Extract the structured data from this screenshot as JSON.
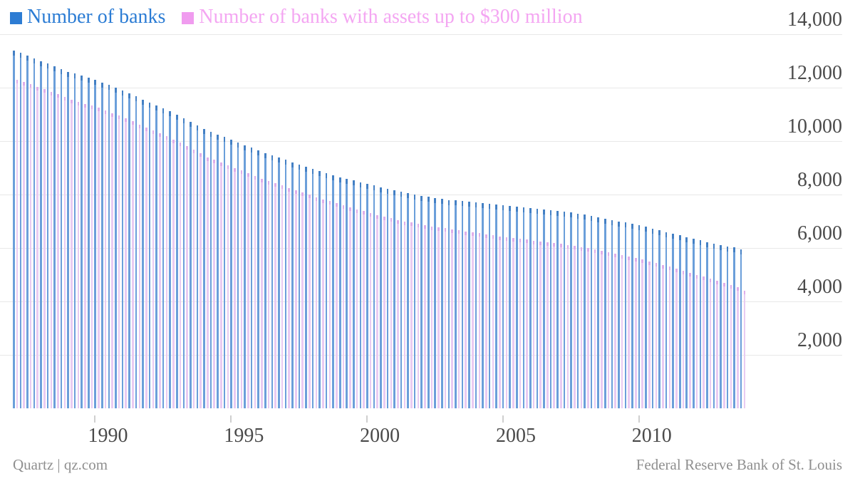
{
  "footer": {
    "left": "Quartz | qz.com",
    "right": "Federal Reserve Bank of St. Louis"
  },
  "colors": {
    "legend_blue_text": "#2b7cd4",
    "legend_pink_text": "#f4a6f2",
    "bar_blue": "#5e97d5",
    "bar_pink": "#e8c6f0",
    "gridline": "#e8e8e8",
    "axis_text": "#4a4a4a",
    "footer_text": "#8f8f8f"
  },
  "chart_data": {
    "type": "bar",
    "title": "",
    "xlabel": "",
    "ylabel": "",
    "grid": "horizontal",
    "legend_position": "top-left",
    "x_unit": "quarterly",
    "x_start_year": 1987,
    "x_end_year": 2013,
    "ylim": [
      0,
      14000
    ],
    "y_ticks": [
      {
        "label": "2,000",
        "value": 2000
      },
      {
        "label": "4,000",
        "value": 4000
      },
      {
        "label": "6,000",
        "value": 6000
      },
      {
        "label": "8,000",
        "value": 8000
      },
      {
        "label": "10,000",
        "value": 10000
      },
      {
        "label": "12,000",
        "value": 12000
      },
      {
        "label": "14,000",
        "value": 14000
      }
    ],
    "x_ticks": [
      {
        "label": "1990",
        "year": 1990
      },
      {
        "label": "1995",
        "year": 1995
      },
      {
        "label": "2000",
        "year": 2000
      },
      {
        "label": "2005",
        "year": 2005
      },
      {
        "label": "2010",
        "year": 2010
      }
    ],
    "series": [
      {
        "name": "Number of banks",
        "color": "#5e97d5",
        "values": [
          13400,
          13300,
          13200,
          13100,
          13000,
          12900,
          12800,
          12700,
          12600,
          12525,
          12450,
          12375,
          12300,
          12200,
          12100,
          12000,
          11900,
          11790,
          11680,
          11560,
          11450,
          11340,
          11230,
          11110,
          11000,
          10860,
          10725,
          10590,
          10450,
          10350,
          10250,
          10150,
          10050,
          9950,
          9850,
          9750,
          9650,
          9560,
          9475,
          9390,
          9300,
          9210,
          9125,
          9040,
          8950,
          8875,
          8800,
          8725,
          8650,
          8590,
          8525,
          8460,
          8400,
          8340,
          8275,
          8210,
          8150,
          8100,
          8050,
          8000,
          7950,
          7910,
          7875,
          7840,
          7800,
          7775,
          7750,
          7725,
          7700,
          7675,
          7650,
          7625,
          7600,
          7575,
          7550,
          7525,
          7500,
          7475,
          7450,
          7425,
          7400,
          7360,
          7325,
          7290,
          7250,
          7200,
          7150,
          7100,
          7050,
          7000,
          6950,
          6900,
          6850,
          6790,
          6725,
          6660,
          6600,
          6540,
          6475,
          6410,
          6350,
          6290,
          6225,
          6160,
          6100,
          6060,
          6025,
          5950
        ]
      },
      {
        "name": "Number of banks with assets up to $300 million",
        "color": "#e8c6f0",
        "values": [
          12300,
          12210,
          12125,
          12040,
          11950,
          11850,
          11750,
          11650,
          11550,
          11475,
          11400,
          11325,
          11250,
          11150,
          11050,
          10950,
          10850,
          10740,
          10625,
          10510,
          10400,
          10290,
          10175,
          10060,
          9950,
          9810,
          9675,
          9540,
          9400,
          9300,
          9200,
          9100,
          9000,
          8900,
          8800,
          8700,
          8600,
          8510,
          8425,
          8340,
          8250,
          8160,
          8075,
          7990,
          7900,
          7825,
          7750,
          7675,
          7600,
          7525,
          7450,
          7375,
          7300,
          7240,
          7175,
          7110,
          7050,
          7000,
          6950,
          6900,
          6850,
          6810,
          6775,
          6740,
          6700,
          6660,
          6625,
          6590,
          6550,
          6510,
          6475,
          6440,
          6400,
          6370,
          6340,
          6310,
          6280,
          6250,
          6215,
          6180,
          6150,
          6110,
          6075,
          6040,
          6000,
          5950,
          5900,
          5850,
          5800,
          5740,
          5685,
          5630,
          5570,
          5500,
          5435,
          5370,
          5300,
          5225,
          5150,
          5075,
          5000,
          4925,
          4850,
          4775,
          4700,
          4610,
          4525,
          4400
        ]
      }
    ]
  }
}
